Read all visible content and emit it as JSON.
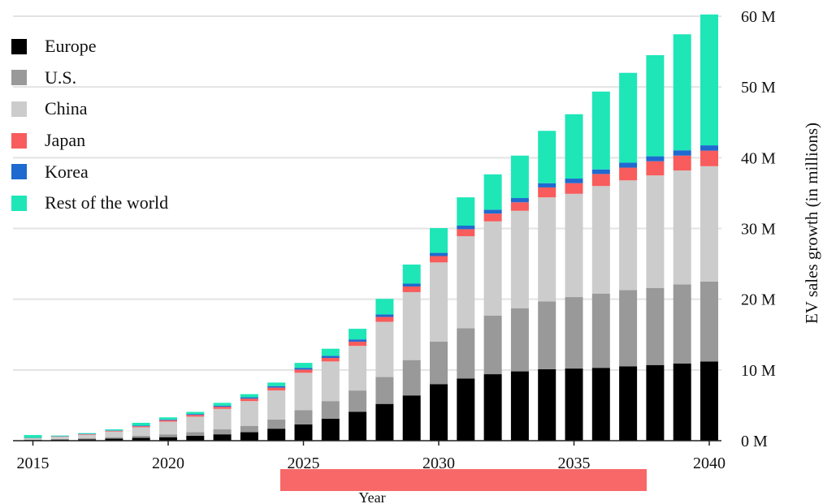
{
  "chart_data": {
    "type": "bar",
    "stacked": true,
    "title": "",
    "xlabel": "Year",
    "ylabel": "EV sales growth (in millions)",
    "ylim": [
      0,
      60
    ],
    "y_ticks": [
      "0 M",
      "10 M",
      "20 M",
      "30 M",
      "40 M",
      "50 M",
      "60 M"
    ],
    "x_ticks": [
      "2015",
      "2020",
      "2025",
      "2030",
      "2035",
      "2040"
    ],
    "grid": "horizontal",
    "legend_position": "top-left",
    "categories": [
      2015,
      2016,
      2017,
      2018,
      2019,
      2020,
      2021,
      2022,
      2023,
      2024,
      2025,
      2026,
      2027,
      2028,
      2029,
      2030,
      2031,
      2032,
      2033,
      2034,
      2035,
      2036,
      2037,
      2038,
      2039,
      2040
    ],
    "series": [
      {
        "name": "Europe",
        "color": "#000000",
        "values": [
          0.1,
          0.15,
          0.2,
          0.3,
          0.4,
          0.5,
          0.7,
          0.9,
          1.2,
          1.7,
          2.3,
          3.1,
          4.1,
          5.2,
          6.4,
          8.0,
          8.8,
          9.4,
          9.8,
          10.1,
          10.2,
          10.3,
          10.5,
          10.7,
          10.9,
          11.2
        ]
      },
      {
        "name": "U.S.",
        "color": "#999999",
        "values": [
          0.05,
          0.1,
          0.15,
          0.2,
          0.3,
          0.4,
          0.5,
          0.7,
          0.9,
          1.3,
          2.0,
          2.5,
          3.0,
          3.8,
          5.0,
          6.0,
          7.1,
          8.3,
          8.9,
          9.6,
          10.1,
          10.5,
          10.8,
          10.9,
          11.2,
          11.3
        ]
      },
      {
        "name": "China",
        "color": "#cccccc",
        "values": [
          0.2,
          0.3,
          0.5,
          0.8,
          1.2,
          1.8,
          2.2,
          2.9,
          3.5,
          4.1,
          5.3,
          5.6,
          6.3,
          7.8,
          9.6,
          11.2,
          13.0,
          13.3,
          13.8,
          14.7,
          14.6,
          15.2,
          15.5,
          15.9,
          16.1,
          16.3
        ]
      },
      {
        "name": "Japan",
        "color": "#f85c5c",
        "values": [
          0.03,
          0.05,
          0.08,
          0.1,
          0.15,
          0.2,
          0.25,
          0.3,
          0.35,
          0.4,
          0.45,
          0.5,
          0.6,
          0.7,
          0.8,
          0.9,
          1.0,
          1.1,
          1.2,
          1.4,
          1.5,
          1.7,
          1.8,
          2.0,
          2.1,
          2.2
        ]
      },
      {
        "name": "Korea",
        "color": "#1f6ad0",
        "values": [
          0.02,
          0.03,
          0.04,
          0.05,
          0.08,
          0.1,
          0.12,
          0.15,
          0.18,
          0.22,
          0.25,
          0.3,
          0.32,
          0.35,
          0.4,
          0.45,
          0.5,
          0.55,
          0.6,
          0.6,
          0.65,
          0.65,
          0.7,
          0.7,
          0.75,
          0.75
        ]
      },
      {
        "name": "Rest of the world",
        "color": "#1ee6b7",
        "values": [
          0.4,
          0.1,
          0.1,
          0.15,
          0.4,
          0.3,
          0.3,
          0.4,
          0.45,
          0.5,
          0.7,
          1.0,
          1.5,
          2.2,
          2.7,
          3.5,
          4.0,
          5.0,
          6.0,
          7.4,
          9.1,
          11.0,
          12.7,
          14.3,
          16.4,
          18.5
        ]
      }
    ],
    "overlay_color": "#f86868"
  }
}
